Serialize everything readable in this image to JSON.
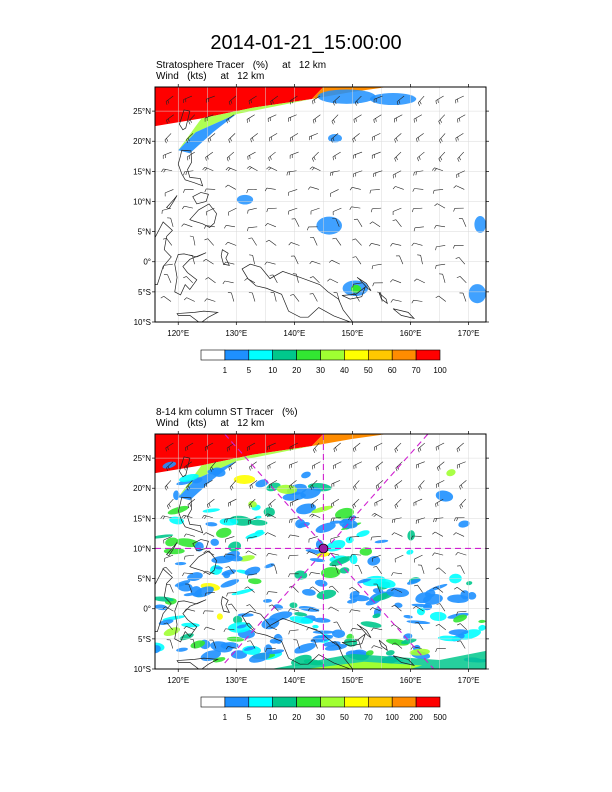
{
  "title": "2014-01-21_15:00:00",
  "panels": [
    {
      "id": "top",
      "line1": "Stratosphere Tracer   (%)     at   12 km",
      "line2": "Wind   (kts)     at   12 km",
      "colorbar": {
        "colors": [
          "#ffffff",
          "#1e90ff",
          "#00ffff",
          "#00c88c",
          "#32e632",
          "#a0ff32",
          "#ffff00",
          "#ffc800",
          "#ff8c00",
          "#ff0000"
        ],
        "labels": [
          "1",
          "5",
          "10",
          "20",
          "30",
          "40",
          "50",
          "60",
          "70",
          "100"
        ]
      }
    },
    {
      "id": "bottom",
      "line1": "8-14 km column ST Tracer   (%)",
      "line2": "Wind   (kts)     at   12 km",
      "colorbar": {
        "colors": [
          "#ffffff",
          "#1e90ff",
          "#00ffff",
          "#00c88c",
          "#32e632",
          "#a0ff32",
          "#ffff00",
          "#ffc800",
          "#ff8c00",
          "#ff0000"
        ],
        "labels": [
          "1",
          "5",
          "10",
          "20",
          "30",
          "50",
          "70",
          "100",
          "200",
          "500"
        ]
      }
    }
  ],
  "map": {
    "lon_range": [
      116,
      173
    ],
    "lat_range": [
      -10,
      29
    ],
    "lat_ticks": [
      {
        "v": 25,
        "t": "25°N"
      },
      {
        "v": 20,
        "t": "20°N"
      },
      {
        "v": 15,
        "t": "15°N"
      },
      {
        "v": 10,
        "t": "10°N"
      },
      {
        "v": 5,
        "t": "5°N"
      },
      {
        "v": 0,
        "t": "0°"
      },
      {
        "v": -5,
        "t": "5°S"
      },
      {
        "v": -10,
        "t": "10°S"
      }
    ],
    "lon_ticks": [
      {
        "v": 120,
        "t": "120°E"
      },
      {
        "v": 130,
        "t": "130°E"
      },
      {
        "v": 140,
        "t": "140°E"
      },
      {
        "v": 150,
        "t": "150°E"
      },
      {
        "v": 160,
        "t": "160°E"
      },
      {
        "v": 170,
        "t": "170°E"
      }
    ],
    "marker": {
      "lon": 145,
      "lat": 10
    }
  }
}
